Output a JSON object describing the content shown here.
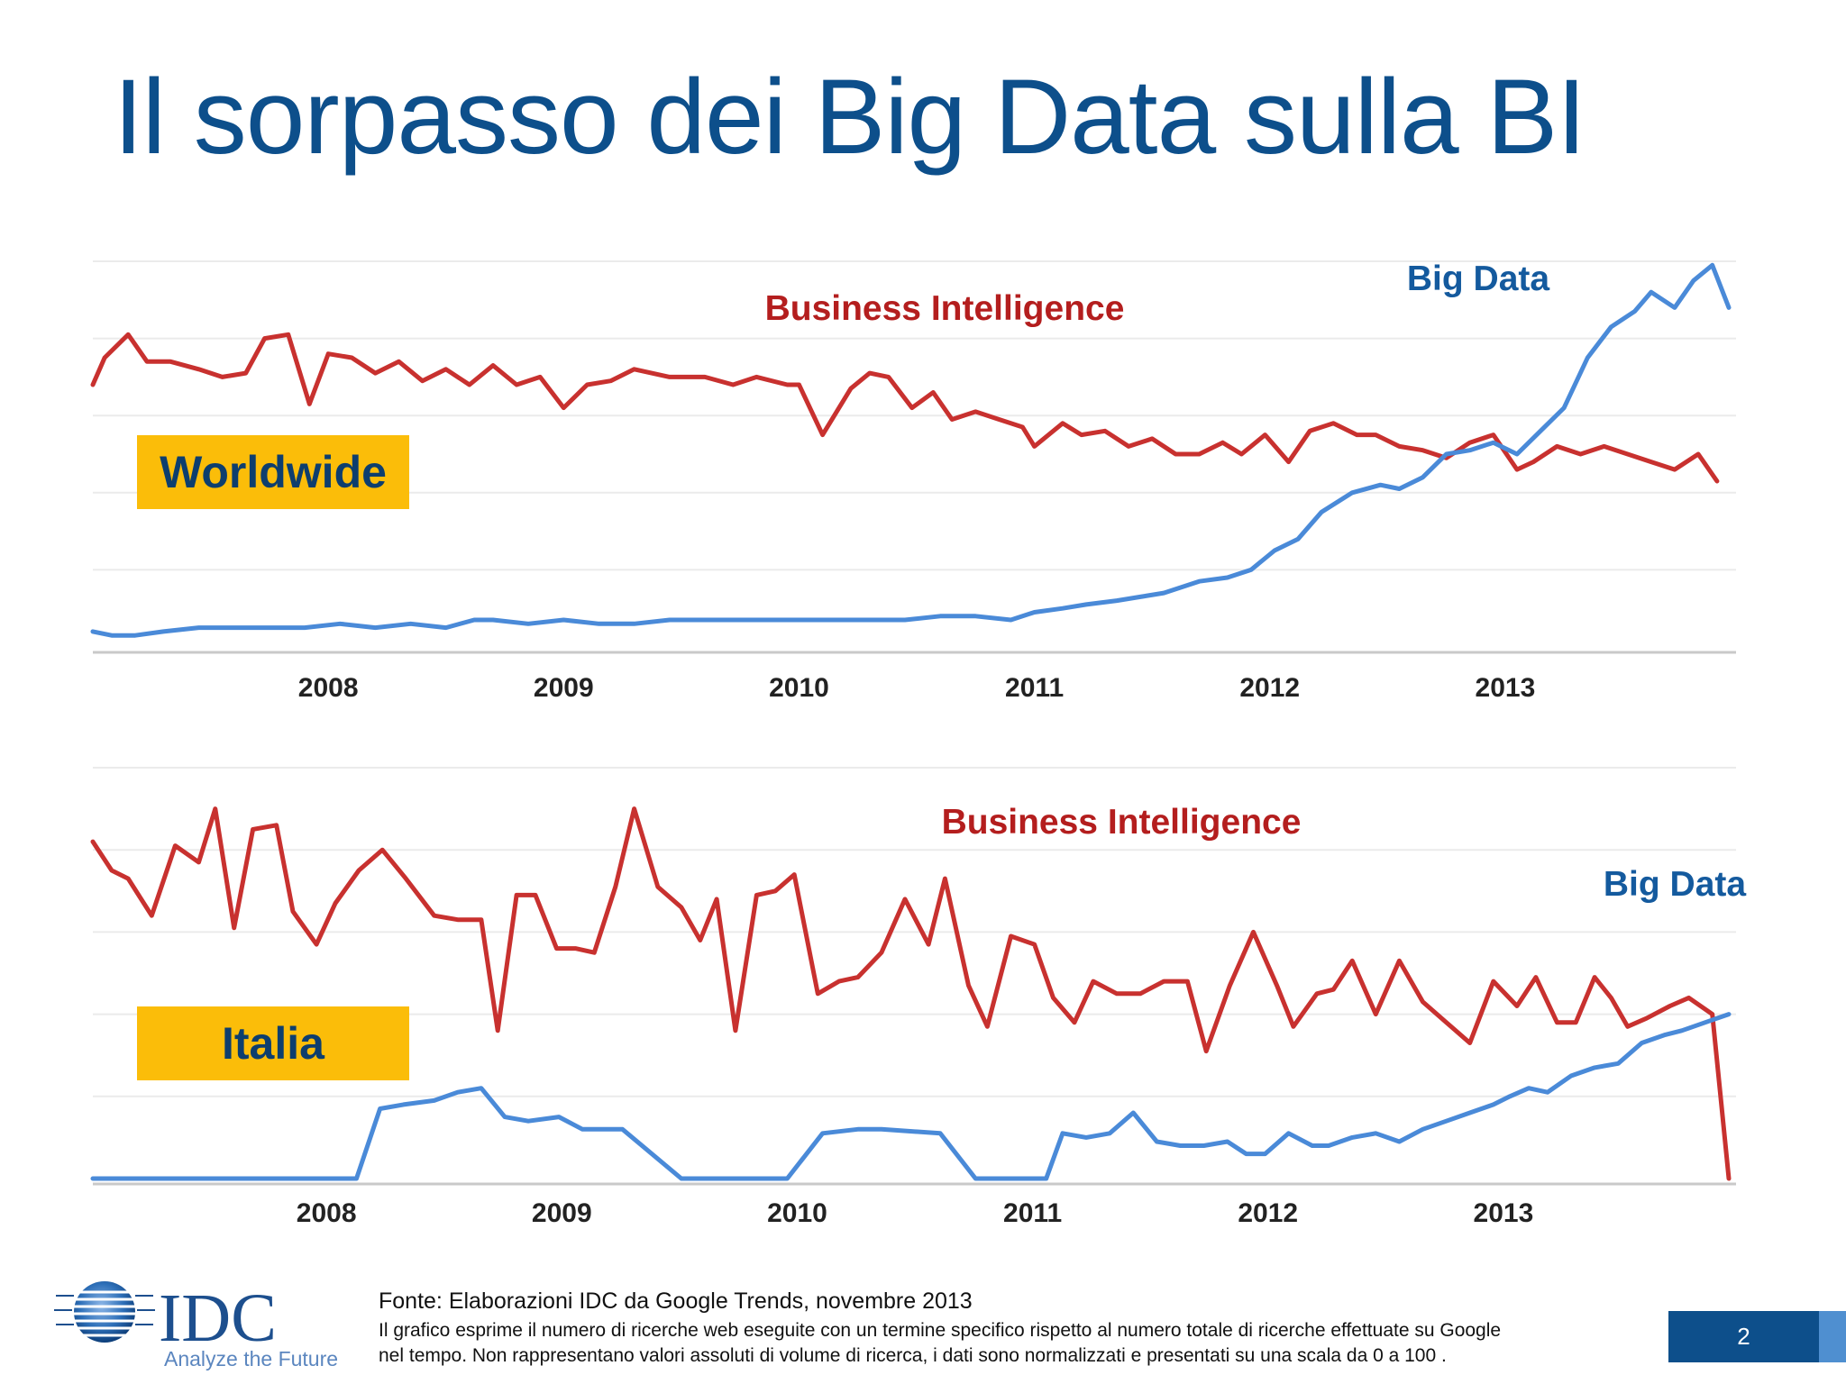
{
  "slide": {
    "title": "Il sorpasso dei Big Data sulla BI",
    "page_number": "2"
  },
  "colors": {
    "title": "#0d4f8b",
    "business_intelligence": "#c8312f",
    "big_data": "#4a8ad8",
    "badge": "#fbbd09",
    "badge_text": "#0d3e6e",
    "bi_label": "#b41e1e",
    "bd_label": "#145a9e"
  },
  "logo": {
    "name": "IDC",
    "tagline": "Analyze the Future"
  },
  "footer": {
    "source": "Fonte: Elaborazioni IDC da Google Trends, novembre 2013",
    "note_line1": "Il grafico esprime il numero di ricerche web eseguite con un termine specifico rispetto al numero totale di ricerche effettuate su Google",
    "note_line2": "nel tempo. Non rappresentano valori assoluti di volume di ricerca, i dati sono normalizzati e presentati su una scala da 0 a 100 ."
  },
  "chart_data": [
    {
      "type": "line",
      "region": "Worldwide",
      "x_tick_labels": [
        "2008",
        "2009",
        "2010",
        "2011",
        "2012",
        "2013"
      ],
      "x_ticks": [
        2008.0,
        2009.0,
        2010.0,
        2011.0,
        2012.0,
        2013.0
      ],
      "xlim": [
        2007.0,
        2013.95
      ],
      "ylim": [
        0,
        100
      ],
      "grid": true,
      "series": [
        {
          "name": "Business Intelligence",
          "x": [
            2007.0,
            2007.05,
            2007.15,
            2007.23,
            2007.33,
            2007.45,
            2007.55,
            2007.65,
            2007.73,
            2007.83,
            2007.92,
            2008.0,
            2008.1,
            2008.2,
            2008.3,
            2008.4,
            2008.5,
            2008.6,
            2008.7,
            2008.8,
            2008.9,
            2009.0,
            2009.1,
            2009.2,
            2009.3,
            2009.45,
            2009.6,
            2009.72,
            2009.82,
            2009.95,
            2010.0,
            2010.1,
            2010.22,
            2010.3,
            2010.38,
            2010.48,
            2010.57,
            2010.65,
            2010.75,
            2010.85,
            2010.95,
            2011.0,
            2011.12,
            2011.2,
            2011.3,
            2011.4,
            2011.5,
            2011.6,
            2011.7,
            2011.8,
            2011.88,
            2011.98,
            2012.08,
            2012.17,
            2012.27,
            2012.37,
            2012.45,
            2012.55,
            2012.65,
            2012.75,
            2012.85,
            2012.95,
            2013.05,
            2013.12,
            2013.22,
            2013.32,
            2013.42,
            2013.52,
            2013.62,
            2013.72,
            2013.82,
            2013.9
          ],
          "values": [
            68,
            75,
            81,
            74,
            74,
            72,
            70,
            71,
            80,
            81,
            63,
            76,
            75,
            71,
            74,
            69,
            72,
            68,
            73,
            68,
            70,
            62,
            68,
            69,
            72,
            70,
            70,
            68,
            70,
            68,
            68,
            55,
            67,
            71,
            70,
            62,
            66,
            59,
            61,
            59,
            57,
            52,
            58,
            55,
            56,
            52,
            54,
            50,
            50,
            53,
            50,
            55,
            48,
            56,
            58,
            55,
            55,
            52,
            51,
            49,
            53,
            55,
            46,
            48,
            52,
            50,
            52,
            50,
            48,
            46,
            50,
            43
          ]
        },
        {
          "name": "Big Data",
          "x": [
            2007.0,
            2007.08,
            2007.18,
            2007.3,
            2007.45,
            2007.6,
            2007.75,
            2007.9,
            2008.05,
            2008.2,
            2008.35,
            2008.5,
            2008.62,
            2008.7,
            2008.85,
            2009.0,
            2009.15,
            2009.3,
            2009.45,
            2009.6,
            2009.75,
            2009.9,
            2010.0,
            2010.15,
            2010.3,
            2010.45,
            2010.6,
            2010.75,
            2010.9,
            2011.0,
            2011.12,
            2011.22,
            2011.35,
            2011.45,
            2011.55,
            2011.7,
            2011.82,
            2011.92,
            2012.02,
            2012.12,
            2012.22,
            2012.35,
            2012.47,
            2012.55,
            2012.65,
            2012.75,
            2012.85,
            2012.95,
            2013.05,
            2013.15,
            2013.25,
            2013.35,
            2013.45,
            2013.55,
            2013.62,
            2013.72,
            2013.8,
            2013.88,
            2013.95
          ],
          "values": [
            4,
            3,
            3,
            4,
            5,
            5,
            5,
            5,
            6,
            5,
            6,
            5,
            7,
            7,
            6,
            7,
            6,
            6,
            7,
            7,
            7,
            7,
            7,
            7,
            7,
            7,
            8,
            8,
            7,
            9,
            10,
            11,
            12,
            13,
            14,
            17,
            18,
            20,
            25,
            28,
            35,
            40,
            42,
            41,
            44,
            50,
            51,
            53,
            50,
            56,
            62,
            75,
            83,
            87,
            92,
            88,
            95,
            99,
            88
          ]
        }
      ],
      "annotations": [
        "Business Intelligence",
        "Big Data"
      ]
    },
    {
      "type": "line",
      "region": "Italia",
      "x_tick_labels": [
        "2008",
        "2009",
        "2010",
        "2011",
        "2012",
        "2013"
      ],
      "x_ticks": [
        2008.0,
        2009.0,
        2010.0,
        2011.0,
        2012.0,
        2013.0
      ],
      "xlim": [
        2007.0,
        2013.95
      ],
      "ylim": [
        0,
        100
      ],
      "grid": true,
      "series": [
        {
          "name": "Business Intelligence",
          "x": [
            2007.0,
            2007.08,
            2007.15,
            2007.25,
            2007.35,
            2007.45,
            2007.52,
            2007.6,
            2007.68,
            2007.78,
            2007.85,
            2007.95,
            2008.03,
            2008.13,
            2008.23,
            2008.33,
            2008.45,
            2008.55,
            2008.65,
            2008.72,
            2008.8,
            2008.88,
            2008.97,
            2009.05,
            2009.13,
            2009.22,
            2009.3,
            2009.4,
            2009.5,
            2009.58,
            2009.65,
            2009.73,
            2009.82,
            2009.9,
            2009.98,
            2010.08,
            2010.17,
            2010.25,
            2010.35,
            2010.45,
            2010.55,
            2010.62,
            2010.72,
            2010.8,
            2010.9,
            2011.0,
            2011.08,
            2011.17,
            2011.25,
            2011.35,
            2011.45,
            2011.55,
            2011.65,
            2011.73,
            2011.83,
            2011.93,
            2012.03,
            2012.1,
            2012.2,
            2012.27,
            2012.35,
            2012.45,
            2012.55,
            2012.65,
            2012.75,
            2012.85,
            2012.95,
            2013.05,
            2013.13,
            2013.22,
            2013.3,
            2013.38,
            2013.45,
            2013.52,
            2013.6,
            2013.7,
            2013.78,
            2013.88,
            2013.95
          ],
          "values": [
            82,
            75,
            73,
            64,
            81,
            77,
            90,
            61,
            85,
            86,
            65,
            57,
            67,
            75,
            80,
            73,
            64,
            63,
            63,
            36,
            69,
            69,
            56,
            56,
            55,
            71,
            90,
            71,
            66,
            58,
            68,
            36,
            69,
            70,
            74,
            45,
            48,
            49,
            55,
            68,
            57,
            73,
            47,
            37,
            59,
            57,
            44,
            38,
            48,
            45,
            45,
            48,
            48,
            31,
            47,
            60,
            47,
            37,
            45,
            46,
            53,
            40,
            53,
            43,
            38,
            33,
            48,
            42,
            49,
            38,
            38,
            49,
            44,
            37,
            39,
            42,
            44,
            40,
            0
          ]
        },
        {
          "name": "Big Data",
          "x": [
            2007.0,
            2007.5,
            2008.0,
            2008.12,
            2008.22,
            2008.32,
            2008.45,
            2008.55,
            2008.65,
            2008.75,
            2008.85,
            2008.98,
            2009.08,
            2009.25,
            2009.5,
            2009.85,
            2009.95,
            2010.1,
            2010.25,
            2010.35,
            2010.6,
            2010.75,
            2010.88,
            2010.95,
            2011.05,
            2011.12,
            2011.22,
            2011.32,
            2011.42,
            2011.52,
            2011.62,
            2011.72,
            2011.82,
            2011.9,
            2011.98,
            2012.08,
            2012.18,
            2012.25,
            2012.35,
            2012.45,
            2012.55,
            2012.65,
            2012.75,
            2012.85,
            2012.95,
            2013.02,
            2013.1,
            2013.18,
            2013.28,
            2013.38,
            2013.48,
            2013.58,
            2013.68,
            2013.75,
            2013.85,
            2013.95
          ],
          "values": [
            0,
            0,
            0,
            0,
            17,
            18,
            19,
            21,
            22,
            15,
            14,
            15,
            12,
            12,
            0,
            0,
            0,
            11,
            12,
            12,
            11,
            0,
            0,
            0,
            0,
            11,
            10,
            11,
            16,
            9,
            8,
            8,
            9,
            6,
            6,
            11,
            8,
            8,
            10,
            11,
            9,
            12,
            14,
            16,
            18,
            20,
            22,
            21,
            25,
            27,
            28,
            33,
            35,
            36,
            38,
            40
          ]
        }
      ],
      "annotations": [
        "Business Intelligence",
        "Big Data"
      ]
    }
  ]
}
